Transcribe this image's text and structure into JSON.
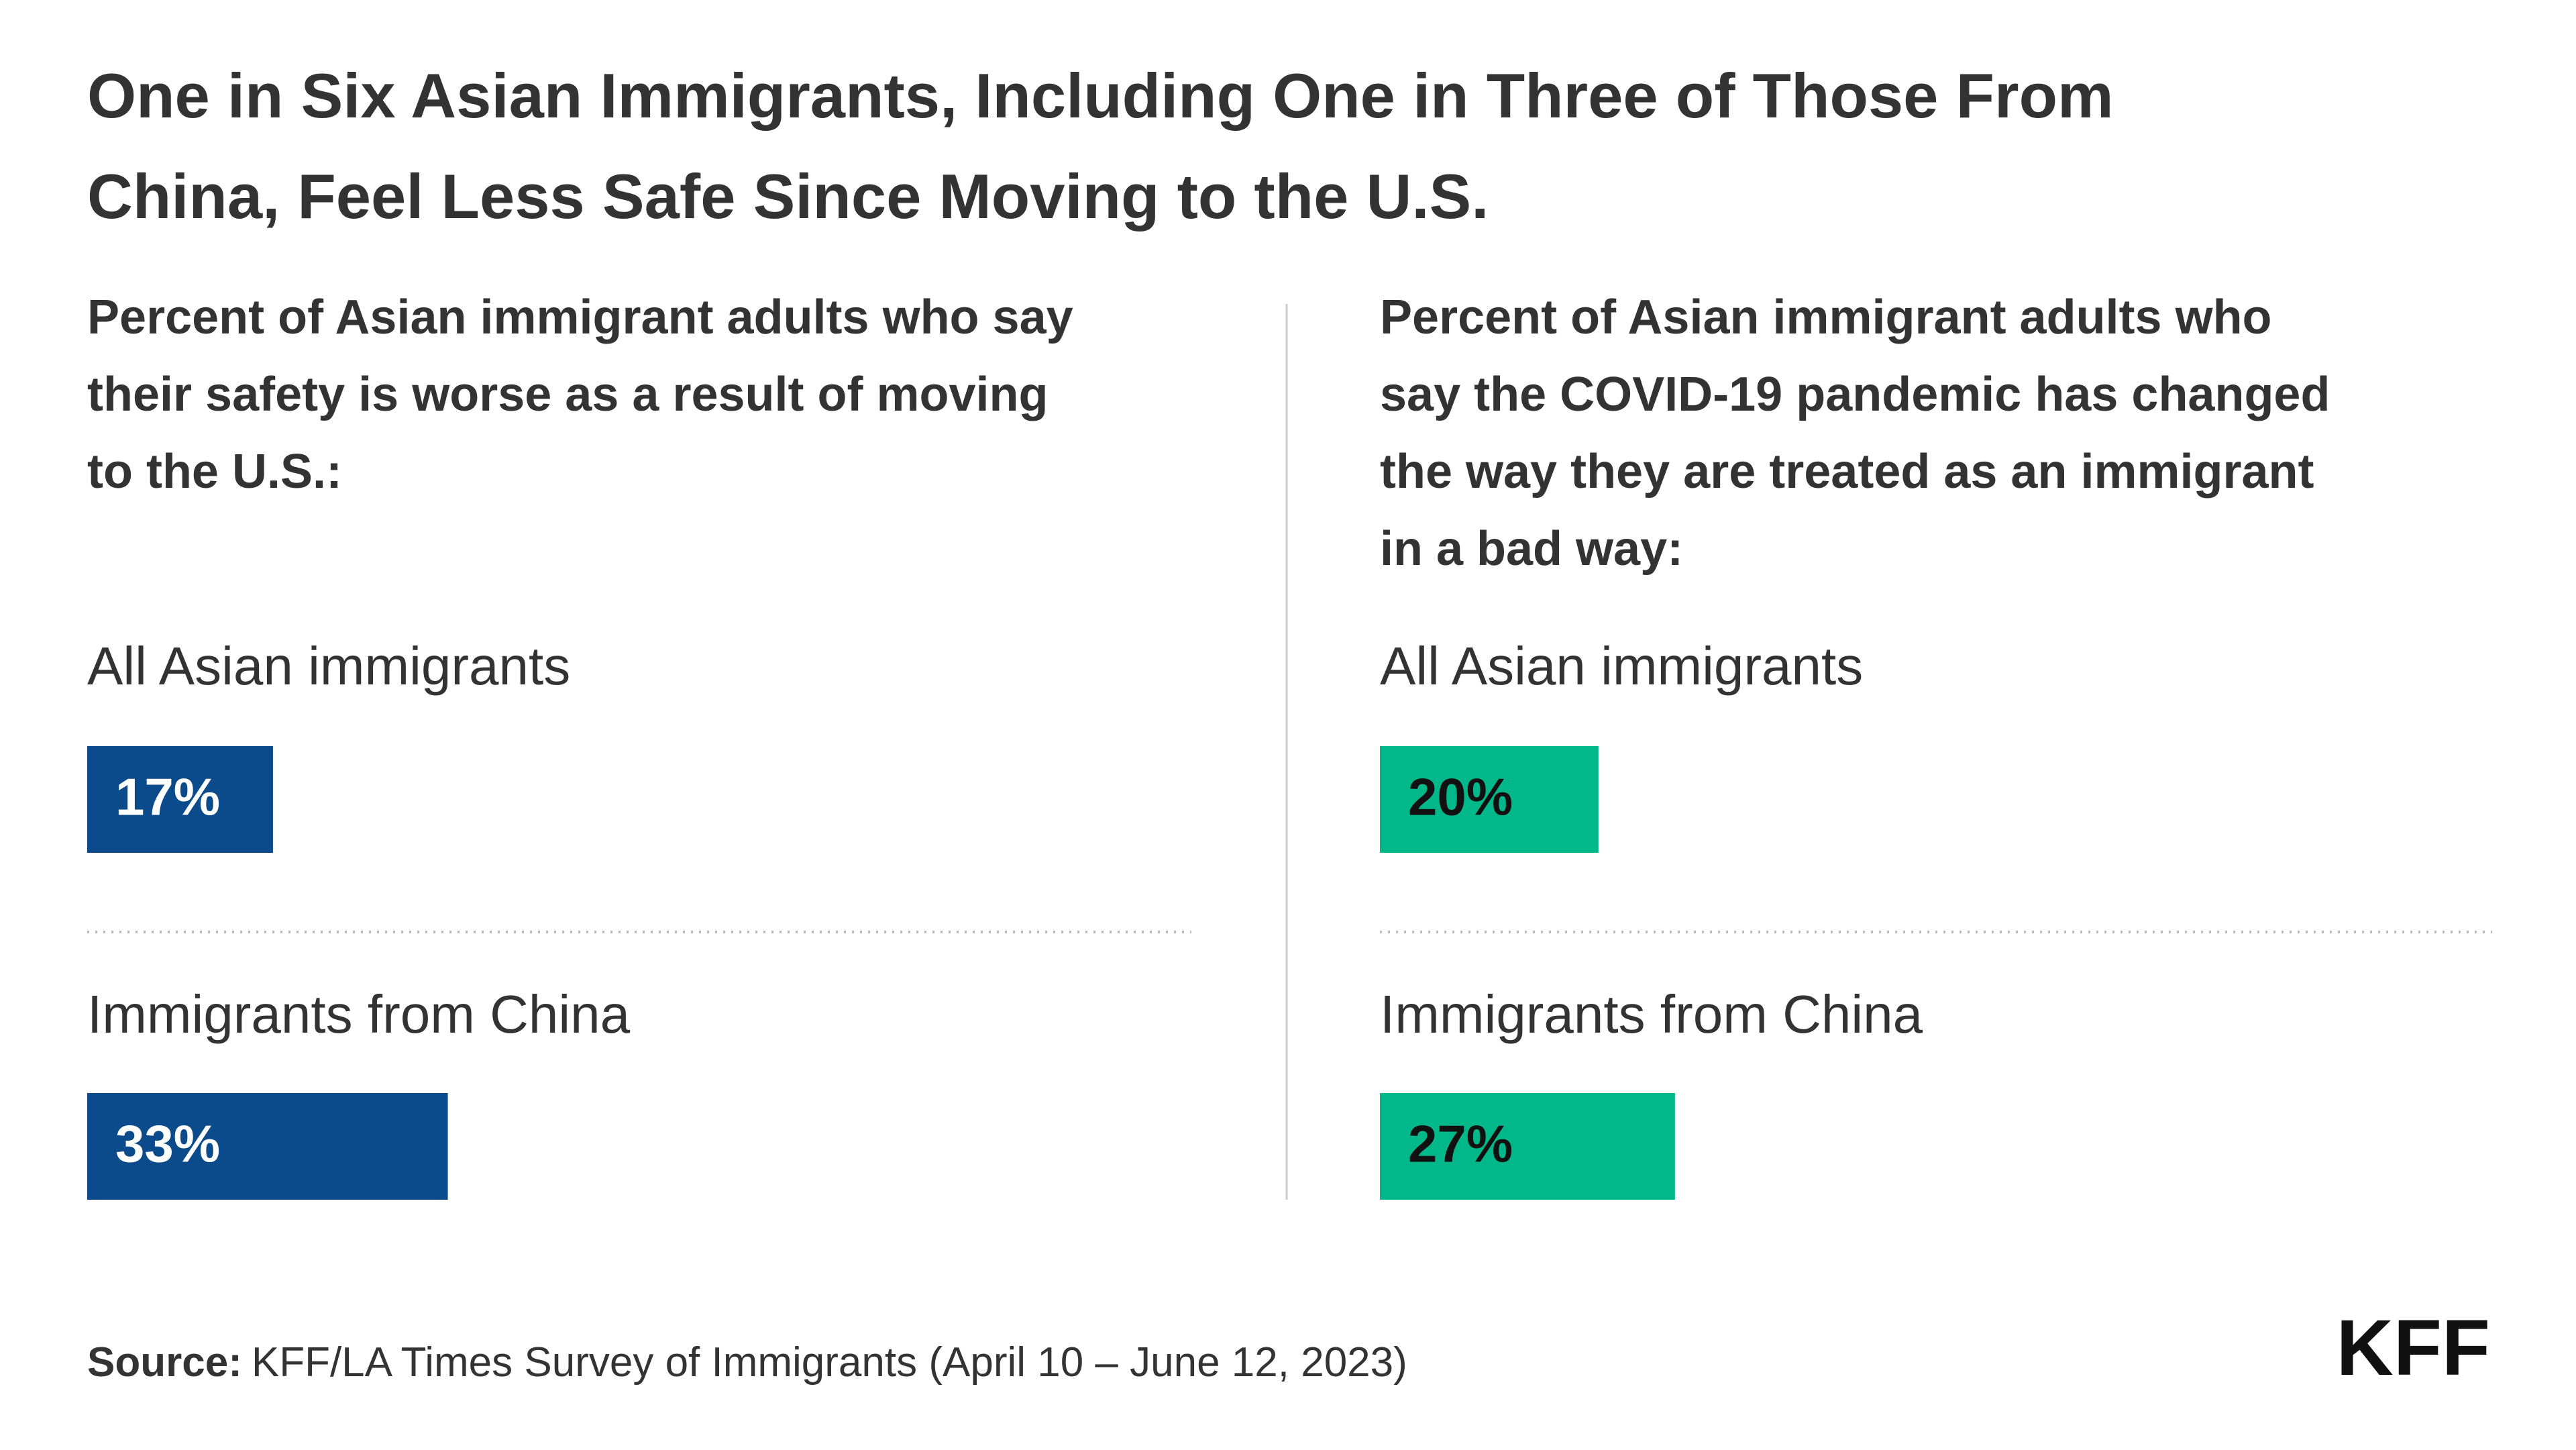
{
  "title": [
    "One in Six Asian Immigrants, Including One in Three of Those From",
    "China, Feel Less Safe Since Moving to the U.S."
  ],
  "chart_data": [
    {
      "type": "bar",
      "subtitle": [
        "Percent of Asian immigrant adults who say",
        "their safety is worse as a result of moving",
        "to the U.S.:"
      ],
      "categories": [
        "All Asian immigrants",
        "Immigrants from China"
      ],
      "values": [
        17,
        33
      ],
      "value_labels": [
        "17%",
        "33%"
      ],
      "color": "#0b4a8b",
      "label_color": "#ffffff"
    },
    {
      "type": "bar",
      "subtitle": [
        "Percent of Asian immigrant adults who",
        "say the COVID-19 pandemic has changed",
        "the way they are treated as an immigrant",
        "in a bad way:"
      ],
      "categories": [
        "All Asian immigrants",
        "Immigrants from China"
      ],
      "values": [
        20,
        27
      ],
      "value_labels": [
        "20%",
        "27%"
      ],
      "color": "#00b88a",
      "label_color": "#111111"
    }
  ],
  "source": {
    "label": "Source:",
    "text": "KFF/LA Times Survey of Immigrants (April 10 – June 12, 2023)"
  },
  "logo": "KFF"
}
